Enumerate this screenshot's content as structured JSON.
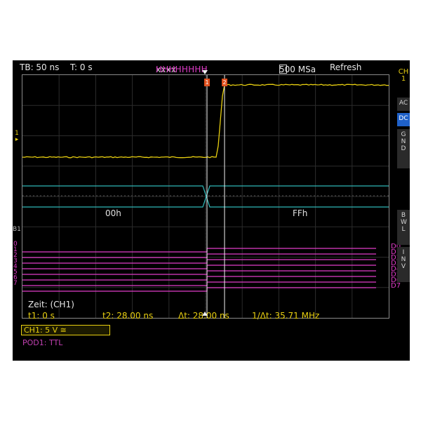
{
  "topbar": {
    "timebase": "TB: 50 ns",
    "trigger_time": "T: 0 s",
    "trigger_prefix": "xxxx",
    "trigger_pattern": "HHHHHHHH",
    "sample_rate": "500 MSa",
    "acq_mode": "Refresh"
  },
  "sidebar": {
    "channel_label": "CH 1",
    "buttons": [
      {
        "label": "AC",
        "active": false
      },
      {
        "label": "DC",
        "active": true
      },
      {
        "label": "GND",
        "active": false
      },
      {
        "label": "BWL",
        "active": false
      },
      {
        "label": "INV",
        "active": false
      }
    ]
  },
  "left_labels": {
    "ch1_marker": "1",
    "bus_marker": "B1",
    "digital_numbers": [
      "0",
      "1",
      "2",
      "3",
      "4",
      "5",
      "6",
      "7"
    ]
  },
  "digital_channels": [
    "D0",
    "D1",
    "D2",
    "D3",
    "D4",
    "D5",
    "D6",
    "D7"
  ],
  "cursors": {
    "cursor1_label": "1",
    "cursor2_label": "2"
  },
  "bus": {
    "value_before": "00h",
    "value_after": "FFh"
  },
  "measurement": {
    "title": "Zeit: (CH1)",
    "t1": "t1: 0 s",
    "t2": "t2: 28.00 ns",
    "delta_t": "Δt: 28.00 ns",
    "inv_delta_t": "1/Δt: 35.71 MHz"
  },
  "status": {
    "ch1": "CH1: 5 V ≅",
    "pod1": "POD1: TTL"
  },
  "colors": {
    "ch1": "#e8cf10",
    "bus": "#2fb6b6",
    "digital": "#e03cc8",
    "active_button": "#1f61c9",
    "cursor_marker": "#e0501e",
    "background": "#000000"
  }
}
